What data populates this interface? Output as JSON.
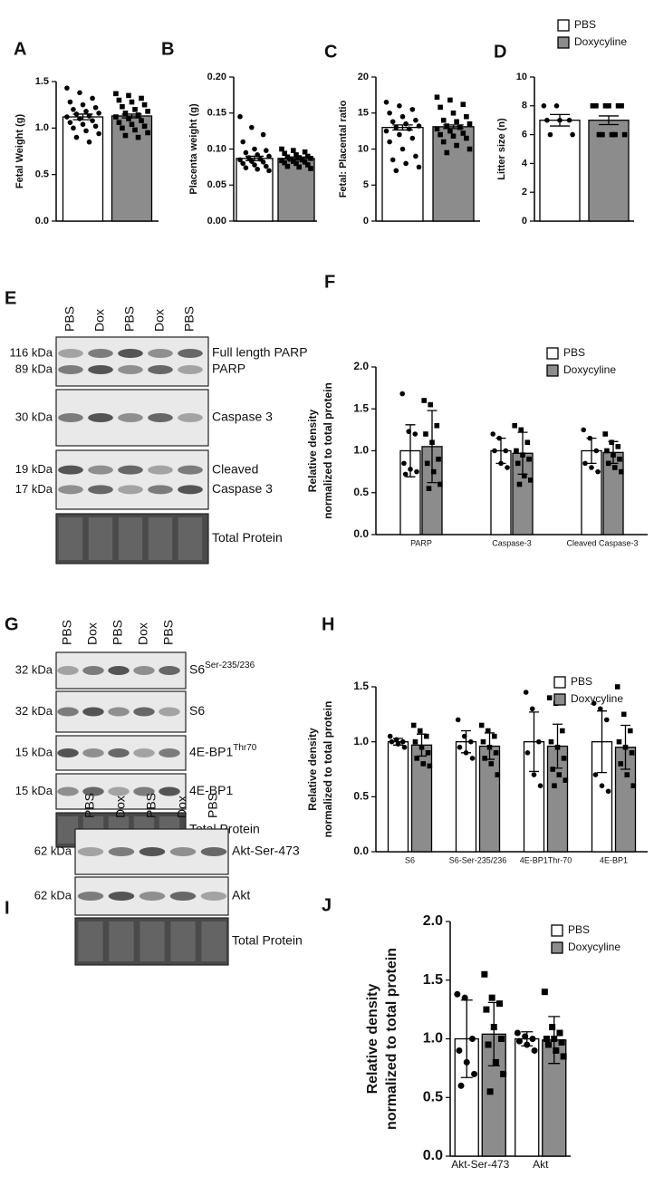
{
  "chart_data": [
    {
      "type": "bar",
      "panel": "A",
      "ylabel": [
        "Fetal Weight (g)"
      ],
      "categories": [
        null
      ],
      "ylim": [
        0,
        1.5
      ],
      "yticks": [
        {
          "value": 0,
          "label": "0.0"
        },
        0.5,
        {
          "value": 1,
          "label": "1.0"
        },
        1.5
      ],
      "series": [
        {
          "color": "#ffffff",
          "marker": "circle",
          "values": [
            1.12
          ],
          "errors": [
            0.03
          ],
          "points": [
            [
              1.43,
              1.38,
              1.32,
              1.28,
              1.25,
              1.22,
              1.2,
              1.18,
              1.16,
              1.15,
              1.13,
              1.12,
              1.1,
              1.08,
              1.06,
              1.04,
              1.02,
              1.0,
              0.97,
              0.94,
              0.9,
              0.85
            ]
          ]
        },
        {
          "color": "#8c8c8c",
          "marker": "square",
          "values": [
            1.13
          ],
          "errors": [
            0.02
          ],
          "points": [
            [
              1.37,
              1.35,
              1.32,
              1.3,
              1.28,
              1.25,
              1.23,
              1.2,
              1.18,
              1.16,
              1.14,
              1.12,
              1.1,
              1.08,
              1.06,
              1.04,
              1.02,
              1.0,
              0.98,
              0.95,
              0.92,
              0.9
            ]
          ]
        }
      ]
    },
    {
      "type": "bar",
      "panel": "B",
      "ylabel": [
        "Placenta weight (g)"
      ],
      "categories": [
        null
      ],
      "ylim": [
        0,
        0.2
      ],
      "yticks": [
        {
          "value": 0,
          "label": "0.00"
        },
        0.05,
        {
          "value": 0.1,
          "label": "0.10"
        },
        0.15,
        {
          "value": 0.2,
          "label": "0.20"
        }
      ],
      "series": [
        {
          "color": "#ffffff",
          "marker": "circle",
          "values": [
            0.087
          ],
          "errors": [
            0.003
          ],
          "points": [
            [
              0.145,
              0.13,
              0.12,
              0.11,
              0.1,
              0.098,
              0.095,
              0.092,
              0.09,
              0.088,
              0.086,
              0.085,
              0.083,
              0.082,
              0.08,
              0.078,
              0.076,
              0.074,
              0.072,
              0.07
            ]
          ]
        },
        {
          "color": "#8c8c8c",
          "marker": "square",
          "values": [
            0.087
          ],
          "errors": [
            0.002
          ],
          "points": [
            [
              0.1,
              0.098,
              0.096,
              0.094,
              0.092,
              0.09,
              0.089,
              0.088,
              0.087,
              0.086,
              0.085,
              0.084,
              0.083,
              0.082,
              0.081,
              0.08,
              0.078,
              0.076,
              0.075,
              0.073
            ]
          ]
        }
      ]
    },
    {
      "type": "bar",
      "panel": "C",
      "ylabel": [
        "Fetal: Placental ratio"
      ],
      "categories": [
        null
      ],
      "ylim": [
        0,
        20
      ],
      "yticks": [
        0,
        5,
        10,
        15,
        20
      ],
      "series": [
        {
          "color": "#ffffff",
          "marker": "circle",
          "values": [
            13.0
          ],
          "errors": [
            0.35
          ],
          "points": [
            [
              16.5,
              16,
              15.5,
              15,
              14.5,
              14,
              13.8,
              13.5,
              13.2,
              13,
              12.8,
              12.5,
              12,
              11.5,
              11,
              10,
              9,
              8.5,
              8,
              7.5,
              7
            ]
          ]
        },
        {
          "color": "#8c8c8c",
          "marker": "square",
          "values": [
            13.1
          ],
          "errors": [
            0.25
          ],
          "points": [
            [
              17.2,
              16.8,
              16.2,
              15.8,
              15,
              14.5,
              14,
              13.8,
              13.5,
              13.2,
              13,
              12.8,
              12.5,
              12.2,
              12,
              11.8,
              11.5,
              11,
              10.5,
              10,
              9.5
            ]
          ]
        }
      ]
    },
    {
      "type": "bar",
      "panel": "D",
      "ylabel": [
        "Litter size (n)"
      ],
      "categories": [
        null
      ],
      "ylim": [
        0,
        10
      ],
      "yticks": [
        0,
        2,
        4,
        6,
        8,
        10
      ],
      "series": [
        {
          "name": "PBS",
          "color": "#ffffff",
          "marker": "circle",
          "values": [
            7.0
          ],
          "errors": [
            0.4
          ],
          "points": [
            [
              8,
              8,
              7,
              7,
              7,
              6,
              6
            ]
          ]
        },
        {
          "name": "Doxycyline",
          "color": "#8c8c8c",
          "marker": "square",
          "values": [
            7.0
          ],
          "errors": [
            0.3
          ],
          "points": [
            [
              8,
              8,
              8,
              8,
              8,
              8,
              6,
              6,
              6,
              6,
              6
            ]
          ]
        }
      ]
    },
    {
      "type": "bar",
      "panel": "F",
      "ylabel": [
        "Relative density",
        "normalized to total protein"
      ],
      "categories": [
        "PARP",
        "Caspase-3",
        "Cleaved Caspase-3"
      ],
      "ylim": [
        0,
        2
      ],
      "yticks": [
        {
          "value": 0,
          "label": "0.0"
        },
        0.5,
        {
          "value": 1,
          "label": "1.0"
        },
        1.5,
        {
          "value": 2,
          "label": "2.0"
        }
      ],
      "series": [
        {
          "name": "PBS",
          "color": "#ffffff",
          "marker": "circle",
          "values": [
            1.0,
            1.0,
            1.0
          ],
          "errors": [
            0.31,
            0.15,
            0.15
          ],
          "points": [
            [
              1.68,
              1.23,
              1.2,
              0.85,
              0.78,
              0.75,
              0.72
            ],
            [
              1.2,
              1.15,
              1.0,
              1.0,
              0.85,
              0.8
            ],
            [
              1.25,
              1.15,
              1.0,
              0.85,
              0.8,
              0.75
            ]
          ]
        },
        {
          "name": "Doxycyline",
          "color": "#8c8c8c",
          "marker": "square",
          "values": [
            1.05,
            0.97,
            0.98
          ],
          "errors": [
            0.43,
            0.25,
            0.13
          ],
          "points": [
            [
              1.6,
              1.55,
              1.3,
              1.2,
              1.1,
              0.9,
              0.85,
              0.75,
              0.6,
              0.55
            ],
            [
              1.3,
              1.25,
              1.1,
              1.0,
              0.95,
              0.9,
              0.85,
              0.7,
              0.65,
              0.6
            ],
            [
              1.2,
              1.1,
              1.05,
              1.0,
              0.95,
              0.9,
              0.85,
              0.8,
              0.75
            ]
          ]
        }
      ]
    },
    {
      "type": "bar",
      "panel": "H",
      "ylabel": [
        "Relative density",
        "normalized to total protein"
      ],
      "categories": [
        "S6",
        "S6-Ser-235/236",
        "4E-BP1Thr-70",
        "4E-BP1"
      ],
      "ylim": [
        0,
        1.5
      ],
      "yticks": [
        {
          "value": 0,
          "label": "0.0"
        },
        0.5,
        {
          "value": 1,
          "label": "1.0"
        },
        1.5
      ],
      "series": [
        {
          "name": "PBS",
          "color": "#ffffff",
          "marker": "circle",
          "values": [
            1.0,
            1.0,
            1.0,
            1.0
          ],
          "errors": [
            0.03,
            0.1,
            0.27,
            0.28
          ],
          "points": [
            [
              1.05,
              1.02,
              1.0,
              1.0,
              0.98,
              0.95
            ],
            [
              1.2,
              1.05,
              1.0,
              0.95,
              0.9,
              0.85
            ],
            [
              1.45,
              1.3,
              1.0,
              0.9,
              0.7,
              0.6
            ],
            [
              1.35,
              1.3,
              1.2,
              0.7,
              0.6,
              0.55
            ]
          ]
        },
        {
          "name": "Doxycyline",
          "color": "#8c8c8c",
          "marker": "square",
          "values": [
            0.97,
            0.96,
            0.96,
            0.95
          ],
          "errors": [
            0.1,
            0.12,
            0.2,
            0.2
          ],
          "points": [
            [
              1.15,
              1.1,
              1.05,
              1.0,
              0.95,
              0.9,
              0.85,
              0.8,
              0.78
            ],
            [
              1.15,
              1.1,
              1.05,
              1.0,
              0.95,
              0.9,
              0.85,
              0.8,
              0.7
            ],
            [
              1.4,
              1.35,
              1.1,
              1.0,
              0.95,
              0.85,
              0.75,
              0.7,
              0.65,
              0.6
            ],
            [
              1.5,
              1.25,
              1.1,
              1.0,
              0.95,
              0.9,
              0.8,
              0.7,
              0.6
            ]
          ]
        }
      ]
    },
    {
      "type": "bar",
      "panel": "J",
      "ylabel": [
        "Relative density",
        "normalized to total protein"
      ],
      "categories": [
        "Akt-Ser-473",
        "Akt"
      ],
      "ylim": [
        0,
        2
      ],
      "yticks": [
        {
          "value": 0,
          "label": "0.0"
        },
        0.5,
        {
          "value": 1,
          "label": "1.0"
        },
        1.5,
        {
          "value": 2,
          "label": "2.0"
        }
      ],
      "series": [
        {
          "name": "PBS",
          "color": "#ffffff",
          "marker": "circle",
          "values": [
            1.0,
            1.0
          ],
          "errors": [
            0.33,
            0.06
          ],
          "points": [
            [
              1.38,
              1.35,
              1.0,
              0.9,
              0.8,
              0.7,
              0.6
            ],
            [
              1.05,
              1.02,
              1.0,
              0.98,
              0.95,
              0.9
            ]
          ]
        },
        {
          "name": "Doxycyline",
          "color": "#8c8c8c",
          "marker": "square",
          "values": [
            1.04,
            0.99
          ],
          "errors": [
            0.27,
            0.2
          ],
          "points": [
            [
              1.55,
              1.35,
              1.3,
              1.25,
              1.1,
              1.0,
              0.95,
              0.8,
              0.7,
              0.55
            ],
            [
              1.4,
              1.1,
              1.05,
              1.0,
              1.0,
              0.97,
              0.95,
              0.9,
              0.85
            ]
          ]
        }
      ]
    }
  ],
  "blots": [
    {
      "panel": "E",
      "lanes": [
        "PBS",
        "Dox",
        "PBS",
        "Dox",
        "PBS"
      ],
      "strips": [
        {
          "markers": [
            "116 kDa",
            "89 kDa"
          ],
          "names": [
            "Full length PARP",
            "PARP"
          ]
        },
        {
          "markers": [
            "30 kDa"
          ],
          "names": [
            "Caspase 3"
          ]
        },
        {
          "markers": [
            "19 kDa",
            "17 kDa"
          ],
          "names": [
            "Cleaved",
            "Caspase 3"
          ]
        },
        {
          "markers": [],
          "names": [
            "Total Protein"
          ]
        }
      ]
    },
    {
      "panel": "G",
      "lanes": [
        "PBS",
        "Dox",
        "PBS",
        "Dox",
        "PBS"
      ],
      "strips": [
        {
          "markers": [
            "32 kDa"
          ],
          "names": [
            "S6"
          ],
          "sup": "Ser-235/236"
        },
        {
          "markers": [
            "32 kDa"
          ],
          "names": [
            "S6"
          ]
        },
        {
          "markers": [
            "15 kDa"
          ],
          "names": [
            "4E-BP1"
          ],
          "sup": "Thr70"
        },
        {
          "markers": [
            "15 kDa"
          ],
          "names": [
            "4E-BP1"
          ]
        },
        {
          "markers": [],
          "names": [
            "Total Protein"
          ]
        }
      ]
    },
    {
      "panel": "I",
      "lanes": [
        "PBS",
        "Dox",
        "PBS",
        "Dox",
        "PBS"
      ],
      "strips": [
        {
          "markers": [
            "62 kDa"
          ],
          "names": [
            "Akt-Ser-473"
          ]
        },
        {
          "markers": [
            "62 kDa"
          ],
          "names": [
            "Akt"
          ]
        },
        {
          "markers": [],
          "names": [
            "Total Protein"
          ]
        }
      ]
    }
  ]
}
